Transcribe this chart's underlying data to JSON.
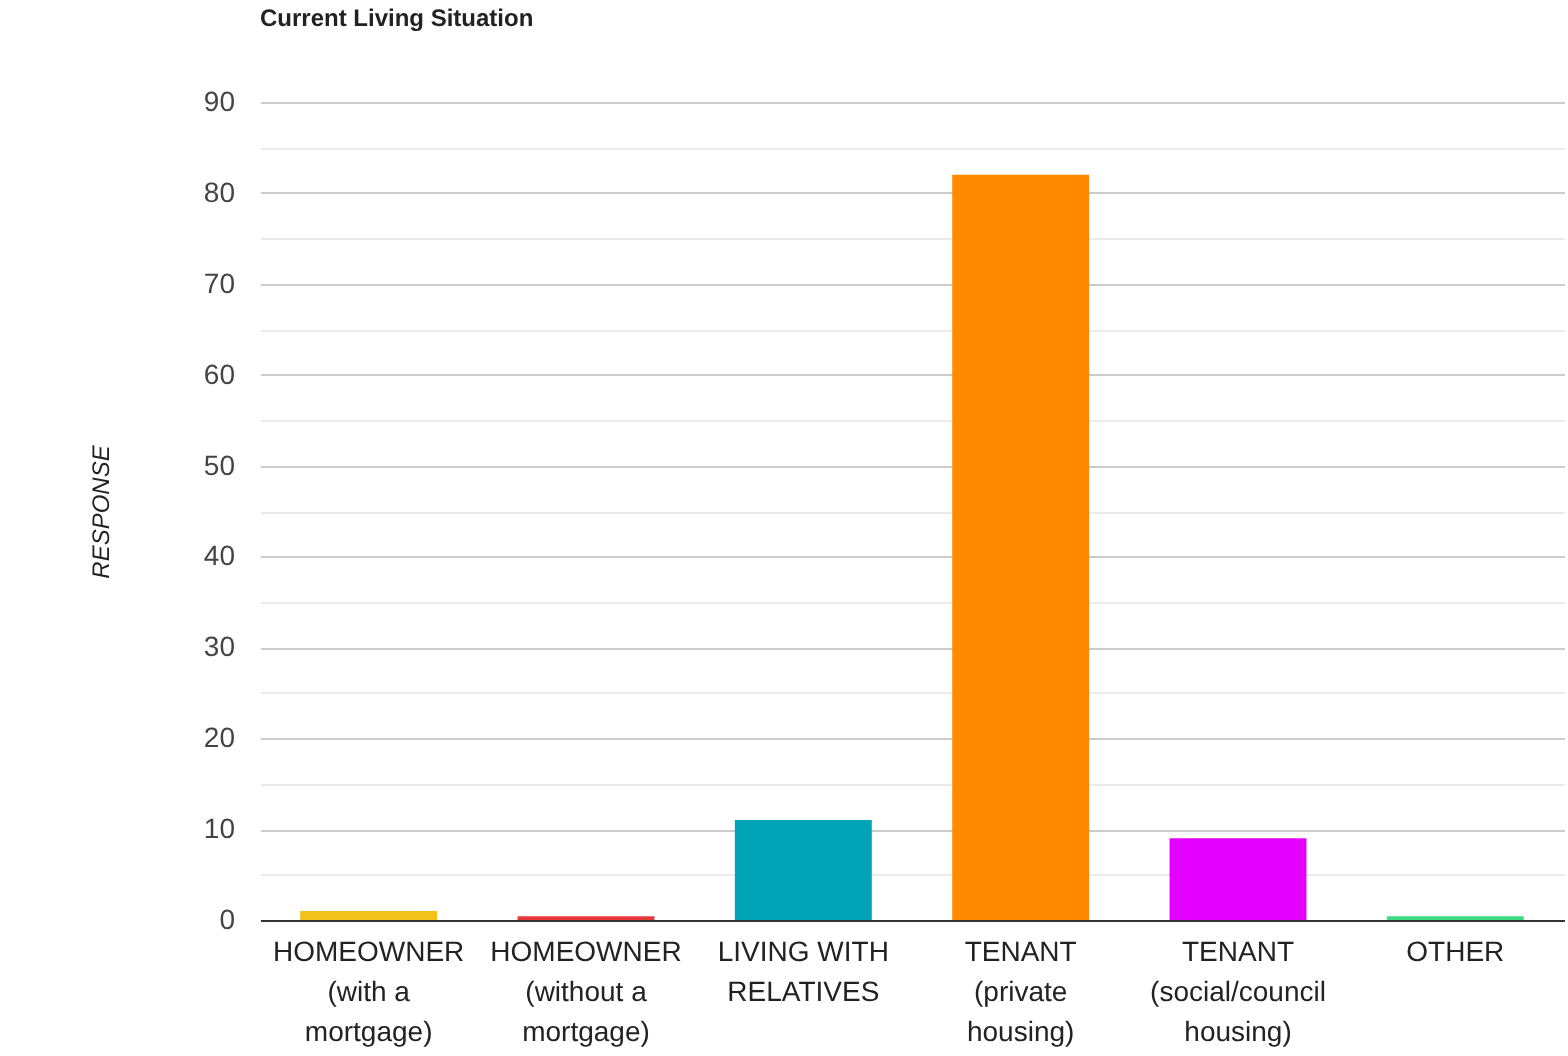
{
  "chart_data": {
    "type": "bar",
    "title": "Current Living Situation",
    "ylabel": "RESPONSE",
    "categories": [
      "HOMEOWNER (with a mortgage)",
      "HOMEOWNER (without a mortgage)",
      "LIVING WITH RELATIVES",
      "TENANT (private housing)",
      "TENANT (social/council housing)",
      "OTHER"
    ],
    "values": [
      1,
      0.4,
      11,
      82,
      9,
      0.4
    ],
    "colors": [
      "#f2c21b",
      "#e8383d",
      "#00a3b5",
      "#ff8a00",
      "#e400ff",
      "#3ddc84"
    ],
    "ylim": [
      0,
      90
    ],
    "yticks": [
      0,
      {
        "value": 5,
        "label": null
      },
      10,
      {
        "value": 15,
        "label": null
      },
      20,
      {
        "value": 25,
        "label": null
      },
      30,
      {
        "value": 35,
        "label": null
      },
      40,
      {
        "value": 45,
        "label": null
      },
      50,
      {
        "value": 55,
        "label": null
      },
      60,
      {
        "value": 65,
        "label": null
      },
      70,
      {
        "value": 75,
        "label": null
      },
      80,
      {
        "value": 85,
        "label": null
      },
      90
    ],
    "grid": "y"
  }
}
